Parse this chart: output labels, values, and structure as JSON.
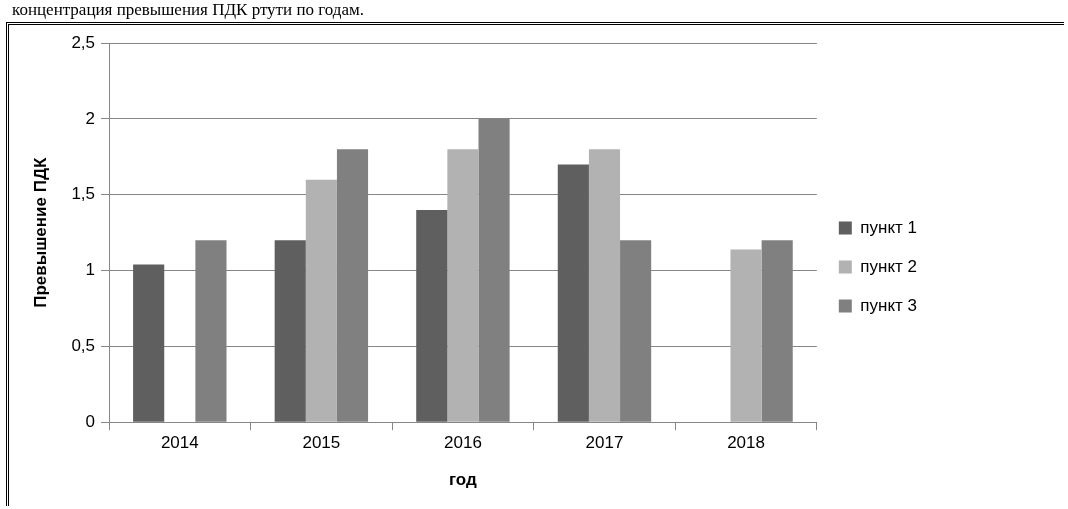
{
  "chart_data": {
    "type": "bar",
    "annotations": [
      "концентрация превышения ПДК ртути по годам."
    ],
    "xlabel": "год",
    "ylabel": "Превышение ПДК",
    "categories": [
      "2014",
      "2015",
      "2016",
      "2017",
      "2018"
    ],
    "series": [
      {
        "name": "пункт 1",
        "color": "#5f5f5f",
        "values": [
          1.04,
          1.2,
          1.4,
          1.7,
          null
        ]
      },
      {
        "name": "пункт 2",
        "color": "#b2b2b2",
        "values": [
          null,
          1.6,
          1.8,
          1.8,
          1.14
        ]
      },
      {
        "name": "пункт 3",
        "color": "#808080",
        "values": [
          1.2,
          1.8,
          2.0,
          1.2,
          1.2
        ]
      }
    ],
    "ylim": [
      0,
      2.5
    ],
    "yticks": [
      0,
      {
        "value": 0.5,
        "label": "0,5"
      },
      1,
      {
        "value": 1.5,
        "label": "1,5"
      },
      2,
      {
        "value": 2.5,
        "label": "2,5"
      }
    ],
    "grid": "y",
    "legend": "right"
  }
}
